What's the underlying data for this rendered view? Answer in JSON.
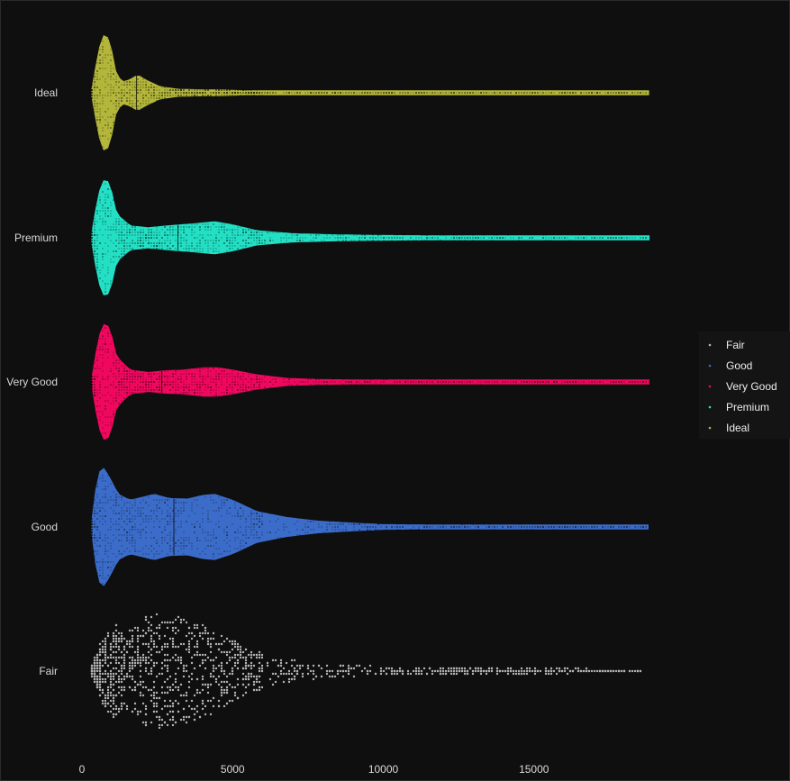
{
  "chart_data": {
    "type": "violin",
    "orientation": "horizontal",
    "xlabel": "",
    "ylabel": "",
    "title": "",
    "xlim": [
      0,
      18823
    ],
    "x_ticks": [
      0,
      5000,
      10000,
      15000
    ],
    "x_tick_labels": [
      "0",
      "5000",
      "10000",
      "15000"
    ],
    "grid": false,
    "legend": {
      "position": "right",
      "entries": [
        "Fair",
        "Good",
        "Very Good",
        "Premium",
        "Ideal"
      ]
    },
    "categories": [
      "Ideal",
      "Premium",
      "Very Good",
      "Good",
      "Fair"
    ],
    "series": [
      {
        "name": "Ideal",
        "color": "#b3b63a",
        "min": 326,
        "max": 18806,
        "median": 1810,
        "density_profile": [
          [
            326,
            0.06
          ],
          [
            500,
            0.55
          ],
          [
            650,
            0.92
          ],
          [
            800,
            1.0
          ],
          [
            950,
            0.8
          ],
          [
            1150,
            0.28
          ],
          [
            1400,
            0.18
          ],
          [
            1700,
            0.25
          ],
          [
            1850,
            0.3
          ],
          [
            2100,
            0.22
          ],
          [
            2600,
            0.1
          ],
          [
            3200,
            0.06
          ],
          [
            4000,
            0.05
          ],
          [
            4700,
            0.05
          ],
          [
            5500,
            0.03
          ],
          [
            7000,
            0.02
          ],
          [
            9000,
            0.015
          ],
          [
            12000,
            0.012
          ],
          [
            15000,
            0.01
          ],
          [
            18806,
            0.01
          ]
        ]
      },
      {
        "name": "Premium",
        "color": "#23e0c5",
        "min": 326,
        "max": 18823,
        "median": 3185,
        "density_profile": [
          [
            326,
            0.08
          ],
          [
            500,
            0.6
          ],
          [
            650,
            0.92
          ],
          [
            800,
            1.0
          ],
          [
            950,
            0.85
          ],
          [
            1150,
            0.4
          ],
          [
            1600,
            0.2
          ],
          [
            2200,
            0.17
          ],
          [
            2800,
            0.2
          ],
          [
            3300,
            0.22
          ],
          [
            3800,
            0.24
          ],
          [
            4400,
            0.27
          ],
          [
            5000,
            0.22
          ],
          [
            5800,
            0.12
          ],
          [
            7000,
            0.07
          ],
          [
            8500,
            0.05
          ],
          [
            10000,
            0.04
          ],
          [
            13000,
            0.03
          ],
          [
            16000,
            0.025
          ],
          [
            18823,
            0.02
          ]
        ]
      },
      {
        "name": "Very Good",
        "color": "#f0085f",
        "min": 336,
        "max": 18818,
        "median": 2648,
        "density_profile": [
          [
            336,
            0.08
          ],
          [
            500,
            0.6
          ],
          [
            650,
            0.92
          ],
          [
            800,
            1.0
          ],
          [
            950,
            0.85
          ],
          [
            1150,
            0.42
          ],
          [
            1600,
            0.2
          ],
          [
            2200,
            0.16
          ],
          [
            2800,
            0.19
          ],
          [
            3400,
            0.2
          ],
          [
            4000,
            0.24
          ],
          [
            4500,
            0.24
          ],
          [
            5000,
            0.2
          ],
          [
            5800,
            0.12
          ],
          [
            6800,
            0.06
          ],
          [
            8000,
            0.04
          ],
          [
            10000,
            0.03
          ],
          [
            13000,
            0.025
          ],
          [
            16000,
            0.02
          ],
          [
            18818,
            0.02
          ]
        ]
      },
      {
        "name": "Good",
        "color": "#3b6cc9",
        "min": 327,
        "max": 18788,
        "median": 3050,
        "density_profile": [
          [
            327,
            0.1
          ],
          [
            450,
            0.6
          ],
          [
            600,
            0.95
          ],
          [
            700,
            1.0
          ],
          [
            900,
            0.85
          ],
          [
            1200,
            0.55
          ],
          [
            1600,
            0.45
          ],
          [
            2000,
            0.5
          ],
          [
            2400,
            0.55
          ],
          [
            2900,
            0.48
          ],
          [
            3500,
            0.47
          ],
          [
            4000,
            0.53
          ],
          [
            4400,
            0.55
          ],
          [
            5000,
            0.45
          ],
          [
            5800,
            0.26
          ],
          [
            6800,
            0.16
          ],
          [
            7800,
            0.1
          ],
          [
            8800,
            0.07
          ],
          [
            10000,
            0.04
          ],
          [
            13000,
            0.03
          ],
          [
            16000,
            0.025
          ],
          [
            18788,
            0.02
          ]
        ]
      },
      {
        "name": "Fair",
        "color": "#b3b3b3",
        "min": 337,
        "max": 18574,
        "median": 3282,
        "density_profile": [
          [
            337,
            0.05
          ],
          [
            600,
            0.45
          ],
          [
            900,
            0.8
          ],
          [
            1100,
            0.82
          ],
          [
            1400,
            0.65
          ],
          [
            1800,
            0.8
          ],
          [
            2200,
            0.98
          ],
          [
            2700,
            1.0
          ],
          [
            3200,
            0.95
          ],
          [
            3700,
            0.88
          ],
          [
            4200,
            0.78
          ],
          [
            4800,
            0.6
          ],
          [
            5500,
            0.4
          ],
          [
            6300,
            0.26
          ],
          [
            7200,
            0.17
          ],
          [
            8200,
            0.12
          ],
          [
            9300,
            0.08
          ],
          [
            10500,
            0.06
          ],
          [
            12500,
            0.05
          ],
          [
            14500,
            0.04
          ],
          [
            16500,
            0.03
          ],
          [
            18574,
            0.02
          ]
        ]
      }
    ]
  }
}
